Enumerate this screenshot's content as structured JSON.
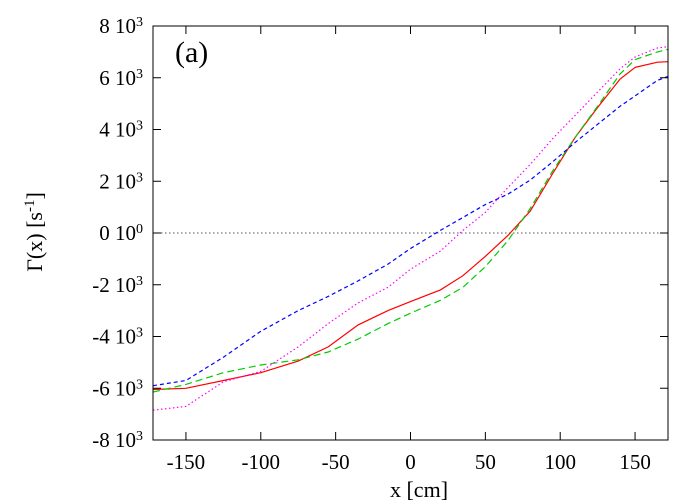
{
  "chart_data": {
    "type": "line",
    "panel_label": "(a)",
    "xlabel": "x [cm]",
    "ylabel": "Γ(x) [s",
    "ylabel_sup": "-1",
    "ylabel_tail": "]",
    "xlim": [
      -172,
      172
    ],
    "ylim": [
      -8000,
      8000
    ],
    "x_ticks": [
      {
        "value": -150,
        "label": "-150"
      },
      {
        "value": -100,
        "label": "-100"
      },
      {
        "value": -50,
        "label": "-50"
      },
      {
        "value": 0,
        "label": "0"
      },
      {
        "value": 50,
        "label": "50"
      },
      {
        "value": 100,
        "label": "100"
      },
      {
        "value": 150,
        "label": "150"
      }
    ],
    "y_ticks": [
      {
        "value": 8000,
        "mant": "8 10",
        "exp": "3"
      },
      {
        "value": 6000,
        "mant": "6 10",
        "exp": "3"
      },
      {
        "value": 4000,
        "mant": "4 10",
        "exp": "3"
      },
      {
        "value": 2000,
        "mant": "2 10",
        "exp": "3"
      },
      {
        "value": 0,
        "mant": "0 10",
        "exp": "0"
      },
      {
        "value": -2000,
        "mant": "-2 10",
        "exp": "3"
      },
      {
        "value": -4000,
        "mant": "-4 10",
        "exp": "3"
      },
      {
        "value": -6000,
        "mant": "-6 10",
        "exp": "3"
      },
      {
        "value": -8000,
        "mant": "-8 10",
        "exp": "3"
      }
    ],
    "zero_line": {
      "y": 0,
      "color": "#555555",
      "style": "dotted"
    },
    "grid": false,
    "legend": "none",
    "series": [
      {
        "color": "#ff0000",
        "style": "solid",
        "points": [
          [
            -172,
            -6050
          ],
          [
            -150,
            -6000
          ],
          [
            -125,
            -5700
          ],
          [
            -100,
            -5400
          ],
          [
            -75,
            -4950
          ],
          [
            -55,
            -4400
          ],
          [
            -35,
            -3550
          ],
          [
            -15,
            -3000
          ],
          [
            0,
            -2650
          ],
          [
            20,
            -2200
          ],
          [
            35,
            -1650
          ],
          [
            50,
            -900
          ],
          [
            65,
            -100
          ],
          [
            80,
            850
          ],
          [
            95,
            2300
          ],
          [
            110,
            3700
          ],
          [
            125,
            4850
          ],
          [
            140,
            5950
          ],
          [
            150,
            6400
          ],
          [
            165,
            6600
          ],
          [
            172,
            6620
          ]
        ]
      },
      {
        "color": "#00cc00",
        "style": "dashed",
        "points": [
          [
            -172,
            -6150
          ],
          [
            -150,
            -5850
          ],
          [
            -125,
            -5400
          ],
          [
            -100,
            -5100
          ],
          [
            -75,
            -4900
          ],
          [
            -55,
            -4600
          ],
          [
            -35,
            -4100
          ],
          [
            -15,
            -3500
          ],
          [
            0,
            -3100
          ],
          [
            20,
            -2600
          ],
          [
            35,
            -2100
          ],
          [
            50,
            -1300
          ],
          [
            65,
            -300
          ],
          [
            80,
            950
          ],
          [
            95,
            2400
          ],
          [
            110,
            3700
          ],
          [
            125,
            4900
          ],
          [
            140,
            6150
          ],
          [
            150,
            6700
          ],
          [
            165,
            7000
          ],
          [
            172,
            7100
          ]
        ]
      },
      {
        "color": "#0000ff",
        "style": "short-dashed",
        "points": [
          [
            -172,
            -5900
          ],
          [
            -150,
            -5700
          ],
          [
            -125,
            -4800
          ],
          [
            -100,
            -3800
          ],
          [
            -75,
            -3000
          ],
          [
            -55,
            -2450
          ],
          [
            -35,
            -1850
          ],
          [
            -15,
            -1200
          ],
          [
            0,
            -600
          ],
          [
            20,
            100
          ],
          [
            35,
            600
          ],
          [
            50,
            1100
          ],
          [
            65,
            1500
          ],
          [
            80,
            2050
          ],
          [
            95,
            2750
          ],
          [
            110,
            3500
          ],
          [
            125,
            4200
          ],
          [
            140,
            4900
          ],
          [
            150,
            5300
          ],
          [
            165,
            5900
          ],
          [
            172,
            6050
          ]
        ]
      },
      {
        "color": "#ff00ff",
        "style": "dotted",
        "points": [
          [
            -172,
            -6850
          ],
          [
            -150,
            -6700
          ],
          [
            -125,
            -5750
          ],
          [
            -100,
            -5350
          ],
          [
            -75,
            -4400
          ],
          [
            -55,
            -3500
          ],
          [
            -35,
            -2700
          ],
          [
            -15,
            -2100
          ],
          [
            0,
            -1400
          ],
          [
            20,
            -700
          ],
          [
            35,
            100
          ],
          [
            50,
            800
          ],
          [
            65,
            1750
          ],
          [
            80,
            2650
          ],
          [
            95,
            3650
          ],
          [
            110,
            4550
          ],
          [
            125,
            5450
          ],
          [
            140,
            6350
          ],
          [
            150,
            6800
          ],
          [
            165,
            7150
          ],
          [
            172,
            7200
          ]
        ]
      }
    ]
  }
}
